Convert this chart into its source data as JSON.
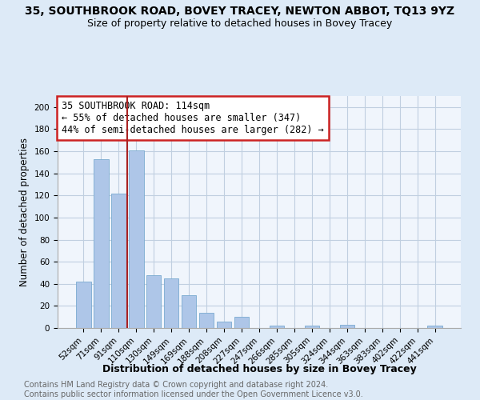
{
  "title": "35, SOUTHBROOK ROAD, BOVEY TRACEY, NEWTON ABBOT, TQ13 9YZ",
  "subtitle": "Size of property relative to detached houses in Bovey Tracey",
  "xlabel": "Distribution of detached houses by size in Bovey Tracey",
  "ylabel": "Number of detached properties",
  "categories": [
    "52sqm",
    "71sqm",
    "91sqm",
    "110sqm",
    "130sqm",
    "149sqm",
    "169sqm",
    "188sqm",
    "208sqm",
    "227sqm",
    "247sqm",
    "266sqm",
    "285sqm",
    "305sqm",
    "324sqm",
    "344sqm",
    "363sqm",
    "383sqm",
    "402sqm",
    "422sqm",
    "441sqm"
  ],
  "values": [
    42,
    153,
    122,
    161,
    48,
    45,
    30,
    14,
    6,
    10,
    0,
    2,
    0,
    2,
    0,
    3,
    0,
    0,
    0,
    0,
    2
  ],
  "bar_color": "#aec6e8",
  "bar_edge_color": "#7aaad0",
  "vline_x": 2.5,
  "vline_color": "#aa2222",
  "annotation_text": "35 SOUTHBROOK ROAD: 114sqm\n← 55% of detached houses are smaller (347)\n44% of semi-detached houses are larger (282) →",
  "annotation_box_color": "#cc2222",
  "ylim": [
    0,
    210
  ],
  "yticks": [
    0,
    20,
    40,
    60,
    80,
    100,
    120,
    140,
    160,
    180,
    200
  ],
  "footnote": "Contains HM Land Registry data © Crown copyright and database right 2024.\nContains public sector information licensed under the Open Government Licence v3.0.",
  "bg_color": "#ddeaf7",
  "plot_bg_color": "#f0f5fc",
  "grid_color": "#c0cfe0",
  "title_fontsize": 10,
  "subtitle_fontsize": 9,
  "xlabel_fontsize": 9,
  "ylabel_fontsize": 8.5,
  "tick_fontsize": 7.5,
  "annotation_fontsize": 8.5,
  "footnote_fontsize": 7
}
